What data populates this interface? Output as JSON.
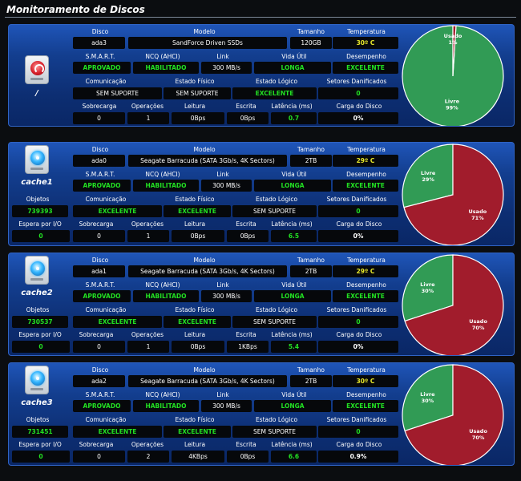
{
  "page_title": "Monitoramento de Discos",
  "colors": {
    "used": "#a11c2c",
    "free": "#319b55",
    "pie_border": "#ffffff",
    "ok_text": "#22e022",
    "temp_text": "#e8e82a"
  },
  "labels": {
    "disco": "Disco",
    "modelo": "Modelo",
    "tamanho": "Tamanho",
    "temperatura": "Temperatura",
    "smart": "S.M.A.R.T.",
    "ncq": "NCQ (AHCI)",
    "link": "Link",
    "vida": "Vida Útil",
    "desempenho": "Desempenho",
    "objetos": "Objetos",
    "comunicacao": "Comunicação",
    "fisico": "Estado Físico",
    "logico": "Estado Lógico",
    "setores": "Setores Danificados",
    "espera": "Espera por I/O",
    "sobrecarga": "Sobrecarga",
    "operacoes": "Operações",
    "leitura": "Leitura",
    "escrita": "Escrita",
    "latencia": "Latência (ms)",
    "carga": "Carga do Disco",
    "usado": "Usado",
    "livre": "Livre"
  },
  "disks": [
    {
      "name": "/",
      "icon": "disk-red-icon",
      "disco": "ada3",
      "modelo": "SandForce Driven SSDs",
      "tamanho": "120GB",
      "temperatura": "30º C",
      "smart": "APROVADO",
      "ncq": "HABILITADO",
      "link": "300 MB/s",
      "vida": "LONGA",
      "desempenho": "EXCELENTE",
      "comunicacao": "SEM SUPORTE",
      "fisico": "SEM SUPORTE",
      "logico": "EXCELENTE",
      "setores": "0",
      "sobrecarga": "0",
      "operacoes": "1",
      "leitura": "0Bps",
      "escrita": "0Bps",
      "latencia": "0.7",
      "carga": "0%",
      "used_pct": 1,
      "free_pct": 99,
      "used_label": "1%",
      "free_label": "99%"
    },
    {
      "name": "cache1",
      "icon": "disk-blue-icon",
      "disco": "ada0",
      "modelo": "Seagate Barracuda (SATA 3Gb/s, 4K Sectors)",
      "tamanho": "2TB",
      "temperatura": "29º C",
      "smart": "APROVADO",
      "ncq": "HABILITADO",
      "link": "300 MB/s",
      "vida": "LONGA",
      "desempenho": "EXCELENTE",
      "objetos": "739393",
      "comunicacao": "EXCELENTE",
      "fisico": "EXCELENTE",
      "logico": "SEM SUPORTE",
      "setores": "0",
      "espera": "0",
      "sobrecarga": "0",
      "operacoes": "1",
      "leitura": "0Bps",
      "escrita": "0Bps",
      "latencia": "6.5",
      "carga": "0%",
      "used_pct": 71,
      "free_pct": 29,
      "used_label": "71%",
      "free_label": "29%"
    },
    {
      "name": "cache2",
      "icon": "disk-blue-icon",
      "disco": "ada1",
      "modelo": "Seagate Barracuda (SATA 3Gb/s, 4K Sectors)",
      "tamanho": "2TB",
      "temperatura": "29º C",
      "smart": "APROVADO",
      "ncq": "HABILITADO",
      "link": "300 MB/s",
      "vida": "LONGA",
      "desempenho": "EXCELENTE",
      "objetos": "730537",
      "comunicacao": "EXCELENTE",
      "fisico": "EXCELENTE",
      "logico": "SEM SUPORTE",
      "setores": "0",
      "espera": "0",
      "sobrecarga": "0",
      "operacoes": "1",
      "leitura": "0Bps",
      "escrita": "1KBps",
      "latencia": "5.4",
      "carga": "0%",
      "used_pct": 70,
      "free_pct": 30,
      "used_label": "70%",
      "free_label": "30%"
    },
    {
      "name": "cache3",
      "icon": "disk-blue-icon",
      "disco": "ada2",
      "modelo": "Seagate Barracuda (SATA 3Gb/s, 4K Sectors)",
      "tamanho": "2TB",
      "temperatura": "30º C",
      "smart": "APROVADO",
      "ncq": "HABILITADO",
      "link": "300 MB/s",
      "vida": "LONGA",
      "desempenho": "EXCELENTE",
      "objetos": "731451",
      "comunicacao": "EXCELENTE",
      "fisico": "EXCELENTE",
      "logico": "SEM SUPORTE",
      "setores": "0",
      "espera": "0",
      "sobrecarga": "0",
      "operacoes": "2",
      "leitura": "4KBps",
      "escrita": "0Bps",
      "latencia": "6.6",
      "carga": "0.9%",
      "used_pct": 70,
      "free_pct": 30,
      "used_label": "70%",
      "free_label": "30%"
    }
  ]
}
